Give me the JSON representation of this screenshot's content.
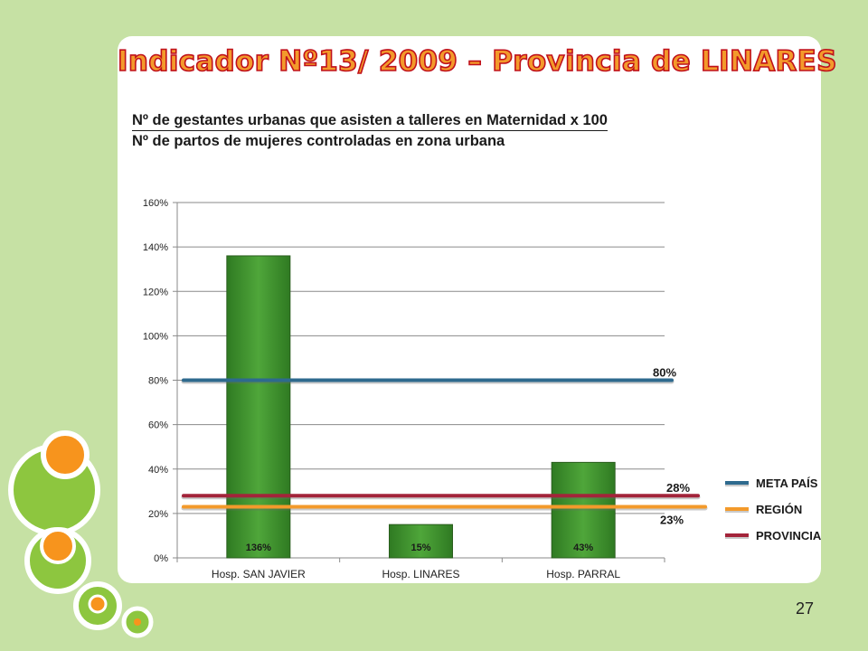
{
  "slide": {
    "title": "Indicador Nº13/ 2009 – Provincia de LINARES",
    "formula_numerator": "Nº de gestantes urbanas que asisten a talleres en Maternidad x 100",
    "formula_denominator": "Nº de partos de mujeres controladas en zona urbana",
    "page_number": "27"
  },
  "colors": {
    "background": "#c6e1a4",
    "bar": "#3f8f2f",
    "meta_pais": "#2e6a8e",
    "region": "#f39a2b",
    "provincia": "#a3243a"
  },
  "chart_data": {
    "type": "bar",
    "categories": [
      "Hosp. SAN JAVIER",
      "Hosp. LINARES",
      "Hosp. PARRAL"
    ],
    "values": [
      136,
      15,
      43
    ],
    "value_labels": [
      "136%",
      "15%",
      "43%"
    ],
    "ylim": [
      0,
      160
    ],
    "y_ticks": [
      "0%",
      "20%",
      "40%",
      "60%",
      "80%",
      "100%",
      "120%",
      "140%",
      "160%"
    ],
    "y_tick_values": [
      0,
      20,
      40,
      60,
      80,
      100,
      120,
      140,
      160
    ],
    "grid": true,
    "legend_position": "right",
    "reference_lines": [
      {
        "name": "META PAÍS",
        "value": 80,
        "label": "80%"
      },
      {
        "name": "REGIÓN",
        "value": 23,
        "label": "23%"
      },
      {
        "name": "PROVINCIA",
        "value": 28,
        "label": "28%"
      }
    ]
  }
}
